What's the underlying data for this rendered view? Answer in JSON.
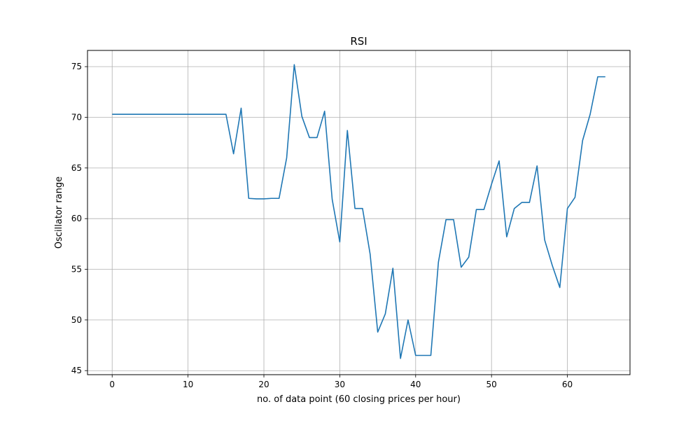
{
  "chart_data": {
    "type": "line",
    "title": "RSI",
    "xlabel": "no. of data point (60 closing prices per hour)",
    "ylabel": "Oscillator range",
    "xlim": [
      -3.25,
      68.25
    ],
    "ylim": [
      44.6,
      76.6
    ],
    "xticks": [
      0,
      10,
      20,
      30,
      40,
      50,
      60
    ],
    "yticks": [
      45,
      50,
      55,
      60,
      65,
      70,
      75
    ],
    "grid": true,
    "line_color": "#1f77b4",
    "series": [
      {
        "x": [
          0,
          1,
          2,
          3,
          4,
          5,
          6,
          7,
          8,
          9,
          10,
          11,
          12,
          13,
          14,
          15,
          16,
          17,
          18,
          19,
          20,
          21,
          22,
          23,
          24,
          25,
          26,
          27,
          28,
          29,
          30,
          31,
          32,
          33,
          34,
          35,
          36,
          37,
          38,
          39,
          40,
          41,
          42,
          43,
          44,
          45,
          46,
          47,
          48,
          49,
          50,
          51,
          52,
          53,
          54,
          55,
          56,
          57,
          58,
          59,
          60,
          61,
          62,
          63,
          64,
          65
        ],
        "values": [
          70.3,
          70.3,
          70.3,
          70.3,
          70.3,
          70.3,
          70.3,
          70.3,
          70.3,
          70.3,
          70.3,
          70.3,
          70.3,
          70.3,
          70.3,
          70.3,
          66.4,
          70.9,
          62.0,
          61.95,
          61.95,
          62.0,
          62.0,
          66.0,
          75.2,
          70.1,
          68.0,
          68.0,
          70.6,
          61.9,
          57.7,
          68.7,
          61.0,
          61.0,
          56.5,
          48.8,
          50.6,
          55.1,
          46.2,
          50.0,
          46.5,
          46.5,
          46.5,
          55.7,
          59.9,
          59.9,
          55.2,
          56.2,
          60.9,
          60.9,
          63.4,
          65.7,
          58.2,
          61.0,
          61.6,
          61.6,
          65.2,
          57.9,
          55.4,
          53.2,
          61.0,
          62.1,
          67.7,
          70.3,
          74.0,
          74.0
        ]
      }
    ]
  }
}
